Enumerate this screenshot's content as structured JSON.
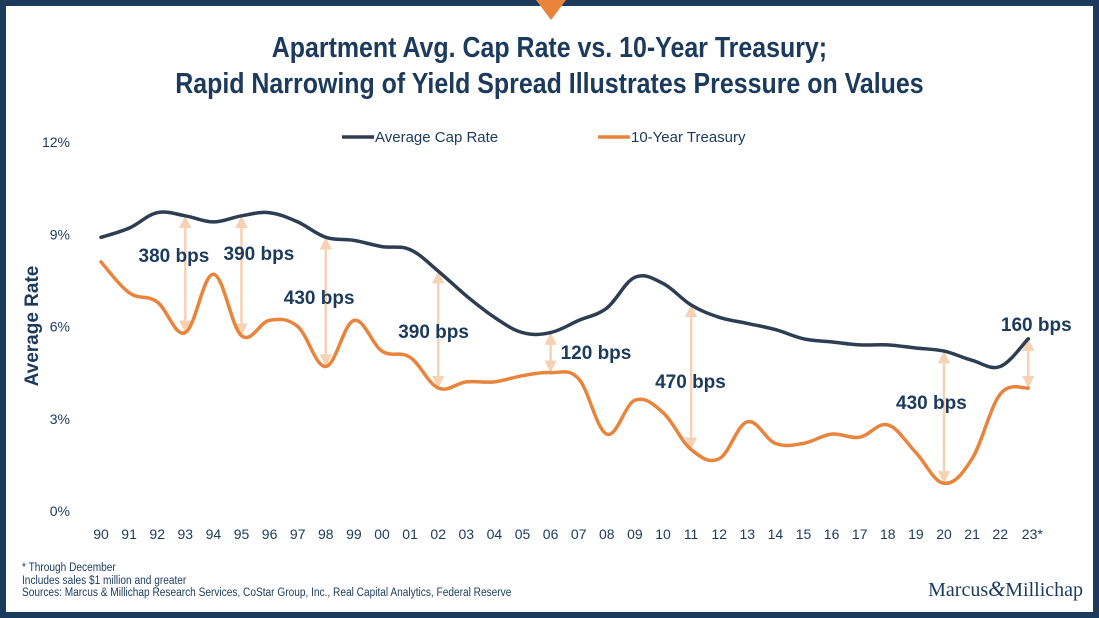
{
  "title": {
    "line1": "Apartment Avg. Cap Rate vs. 10-Year Treasury;",
    "line2": "Rapid Narrowing of Yield Spread Illustrates Pressure on Values"
  },
  "chart_data": {
    "type": "line",
    "ylabel": "Average Rate",
    "ylim": [
      0,
      12
    ],
    "yticks": [
      "0%",
      "3%",
      "6%",
      "9%",
      "12%"
    ],
    "categories": [
      "90",
      "91",
      "92",
      "93",
      "94",
      "95",
      "96",
      "97",
      "98",
      "99",
      "00",
      "01",
      "02",
      "03",
      "04",
      "05",
      "06",
      "07",
      "08",
      "09",
      "10",
      "11",
      "12",
      "13",
      "14",
      "15",
      "16",
      "17",
      "18",
      "19",
      "20",
      "21",
      "22",
      "23*"
    ],
    "legend_position": "top-center",
    "series": [
      {
        "name": "Average Cap Rate",
        "color": "#2e3e52",
        "values": [
          8.9,
          9.2,
          9.7,
          9.6,
          9.4,
          9.6,
          9.7,
          9.4,
          8.9,
          8.8,
          8.6,
          8.5,
          7.8,
          7.0,
          6.3,
          5.8,
          5.8,
          6.2,
          6.6,
          7.6,
          7.4,
          6.7,
          6.3,
          6.1,
          5.9,
          5.6,
          5.5,
          5.4,
          5.4,
          5.3,
          5.2,
          4.9,
          4.7,
          5.6
        ]
      },
      {
        "name": "10-Year Treasury",
        "color": "#e8843c",
        "values": [
          8.1,
          7.1,
          6.8,
          5.8,
          7.7,
          5.7,
          6.2,
          6.0,
          4.7,
          6.2,
          5.2,
          5.0,
          4.0,
          4.2,
          4.2,
          4.4,
          4.5,
          4.3,
          2.5,
          3.6,
          3.2,
          2.0,
          1.7,
          2.9,
          2.2,
          2.2,
          2.5,
          2.4,
          2.8,
          1.9,
          0.9,
          1.7,
          3.8,
          4.0
        ]
      }
    ],
    "annotations": [
      {
        "label": "380 bps",
        "category": "93",
        "label_pos": "left"
      },
      {
        "label": "390 bps",
        "category": "95",
        "label_pos": "right"
      },
      {
        "label": "430 bps",
        "category": "98",
        "label_pos": "right"
      },
      {
        "label": "390 bps",
        "category": "02",
        "label_pos": "above"
      },
      {
        "label": "120 bps",
        "category": "06",
        "label_pos": "right"
      },
      {
        "label": "470 bps",
        "category": "11",
        "label_pos": "right"
      },
      {
        "label": "430 bps",
        "category": "20",
        "label_pos": "left"
      },
      {
        "label": "160 bps",
        "category": "23*",
        "label_pos": "above"
      }
    ]
  },
  "footer": {
    "note1": "* Through December",
    "note2": "Includes sales $1 million and greater",
    "sources": "Sources: Marcus & Millichap Research Services, CoStar Group, Inc., Real Capital Analytics, Federal Reserve"
  },
  "logo": {
    "left": "Marcus",
    "amp": "&",
    "right": "Millichap"
  },
  "colors": {
    "navy": "#1b3a5c",
    "orange": "#e8843c",
    "arrow": "#f5d2b4"
  }
}
